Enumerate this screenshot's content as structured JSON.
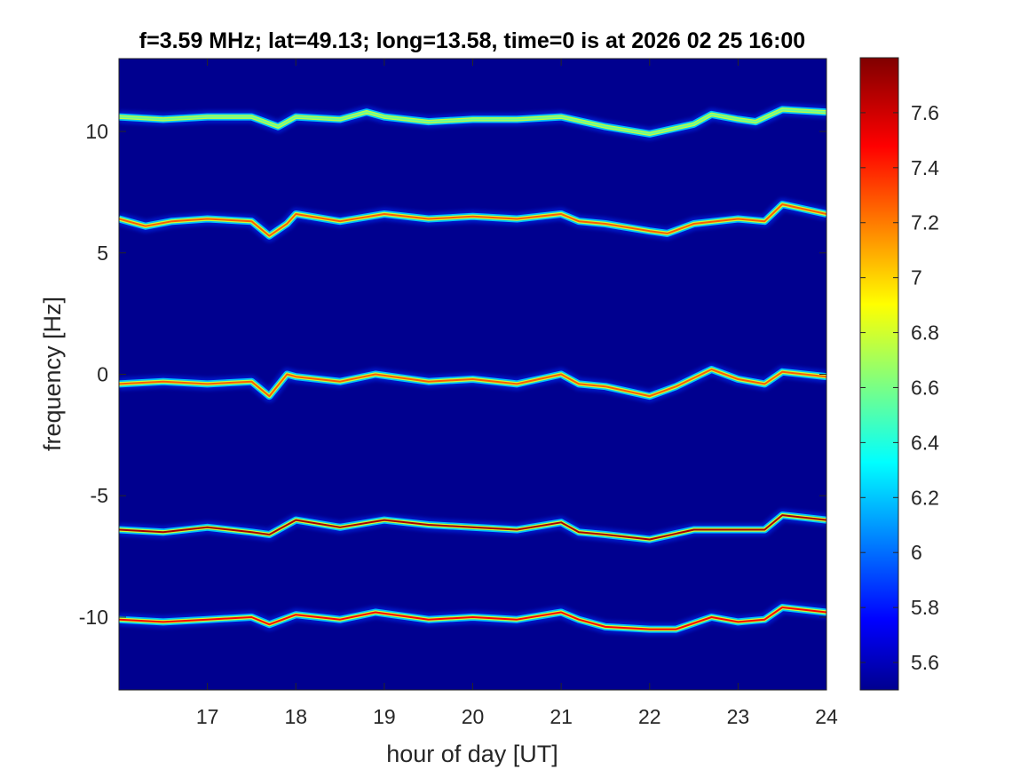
{
  "chart_data": {
    "type": "heatmap",
    "title": "f=3.59 MHz;  lat=49.13; long=13.58, time=0 is at 2026 02 25 16:00",
    "xlabel": "hour of day [UT]",
    "ylabel": "frequency [Hz]",
    "xlim": [
      16.0,
      24.0
    ],
    "ylim": [
      -13.0,
      13.0
    ],
    "x_ticks": [
      17,
      18,
      19,
      20,
      21,
      22,
      23,
      24
    ],
    "x_tick_labels": [
      "17",
      "18",
      "19",
      "20",
      "21",
      "22",
      "23",
      "24"
    ],
    "y_ticks": [
      10,
      5,
      0,
      -5,
      -10
    ],
    "y_tick_labels": [
      "10",
      "5",
      "0",
      "-5",
      "-10"
    ],
    "colorbar": {
      "colormap": "jet",
      "clim": [
        5.5,
        7.8
      ],
      "ticks": [
        7.6,
        7.4,
        7.2,
        7,
        6.8,
        6.6,
        6.4,
        6.2,
        6,
        5.8,
        5.6
      ],
      "tick_labels": [
        "7.6",
        "7.4",
        "7.2",
        "7",
        "6.8",
        "6.6",
        "6.4",
        "6.2",
        "6",
        "5.8",
        "5.6"
      ]
    },
    "background_color": "#00008F",
    "grid": false,
    "series": [
      {
        "offset_hz": 10.0,
        "peak_level": 6.6,
        "hours": [
          16.0,
          16.5,
          17.0,
          17.5,
          17.8,
          18.0,
          18.5,
          18.8,
          19.0,
          19.5,
          20.0,
          20.5,
          21.0,
          21.5,
          22.0,
          22.5,
          22.7,
          23.0,
          23.2,
          23.5,
          24.0
        ],
        "freq_hz": [
          10.6,
          10.5,
          10.6,
          10.6,
          10.2,
          10.6,
          10.5,
          10.8,
          10.6,
          10.4,
          10.5,
          10.5,
          10.6,
          10.2,
          9.9,
          10.3,
          10.7,
          10.5,
          10.4,
          10.9,
          10.8
        ]
      },
      {
        "offset_hz": 5.0,
        "peak_level": 7.3,
        "hours": [
          16.0,
          16.3,
          16.6,
          17.0,
          17.5,
          17.7,
          17.9,
          18.0,
          18.5,
          19.0,
          19.5,
          20.0,
          20.5,
          21.0,
          21.2,
          21.5,
          22.0,
          22.2,
          22.5,
          23.0,
          23.3,
          23.5,
          24.0
        ],
        "freq_hz": [
          6.4,
          6.1,
          6.3,
          6.4,
          6.3,
          5.7,
          6.2,
          6.6,
          6.3,
          6.6,
          6.4,
          6.5,
          6.4,
          6.6,
          6.3,
          6.2,
          5.9,
          5.8,
          6.2,
          6.4,
          6.3,
          7.0,
          6.6
        ]
      },
      {
        "offset_hz": 0.0,
        "peak_level": 7.3,
        "hours": [
          16.0,
          16.5,
          17.0,
          17.5,
          17.7,
          17.9,
          18.0,
          18.5,
          18.9,
          19.5,
          20.0,
          20.5,
          21.0,
          21.2,
          21.5,
          22.0,
          22.3,
          22.7,
          23.0,
          23.3,
          23.5,
          24.0
        ],
        "freq_hz": [
          -0.4,
          -0.3,
          -0.4,
          -0.3,
          -0.9,
          0.0,
          -0.1,
          -0.3,
          0.0,
          -0.3,
          -0.2,
          -0.4,
          0.0,
          -0.4,
          -0.5,
          -0.9,
          -0.5,
          0.2,
          -0.2,
          -0.4,
          0.1,
          -0.1
        ]
      },
      {
        "offset_hz": -5.0,
        "peak_level": 7.7,
        "hours": [
          16.0,
          16.5,
          17.0,
          17.5,
          17.7,
          18.0,
          18.5,
          19.0,
          19.5,
          20.0,
          20.5,
          21.0,
          21.2,
          21.5,
          22.0,
          22.5,
          23.0,
          23.3,
          23.5,
          24.0
        ],
        "freq_hz": [
          -6.4,
          -6.5,
          -6.3,
          -6.5,
          -6.6,
          -6.0,
          -6.3,
          -6.0,
          -6.2,
          -6.3,
          -6.4,
          -6.1,
          -6.5,
          -6.6,
          -6.8,
          -6.4,
          -6.4,
          -6.4,
          -5.8,
          -6.0
        ]
      },
      {
        "offset_hz": -10.0,
        "peak_level": 7.5,
        "hours": [
          16.0,
          16.5,
          17.0,
          17.5,
          17.7,
          18.0,
          18.5,
          18.9,
          19.5,
          20.0,
          20.5,
          21.0,
          21.2,
          21.5,
          22.0,
          22.3,
          22.7,
          23.0,
          23.3,
          23.5,
          24.0
        ],
        "freq_hz": [
          -10.1,
          -10.2,
          -10.1,
          -10.0,
          -10.3,
          -9.9,
          -10.1,
          -9.8,
          -10.1,
          -10.0,
          -10.1,
          -9.8,
          -10.1,
          -10.4,
          -10.5,
          -10.5,
          -10.0,
          -10.2,
          -10.1,
          -9.6,
          -9.8
        ]
      }
    ]
  }
}
